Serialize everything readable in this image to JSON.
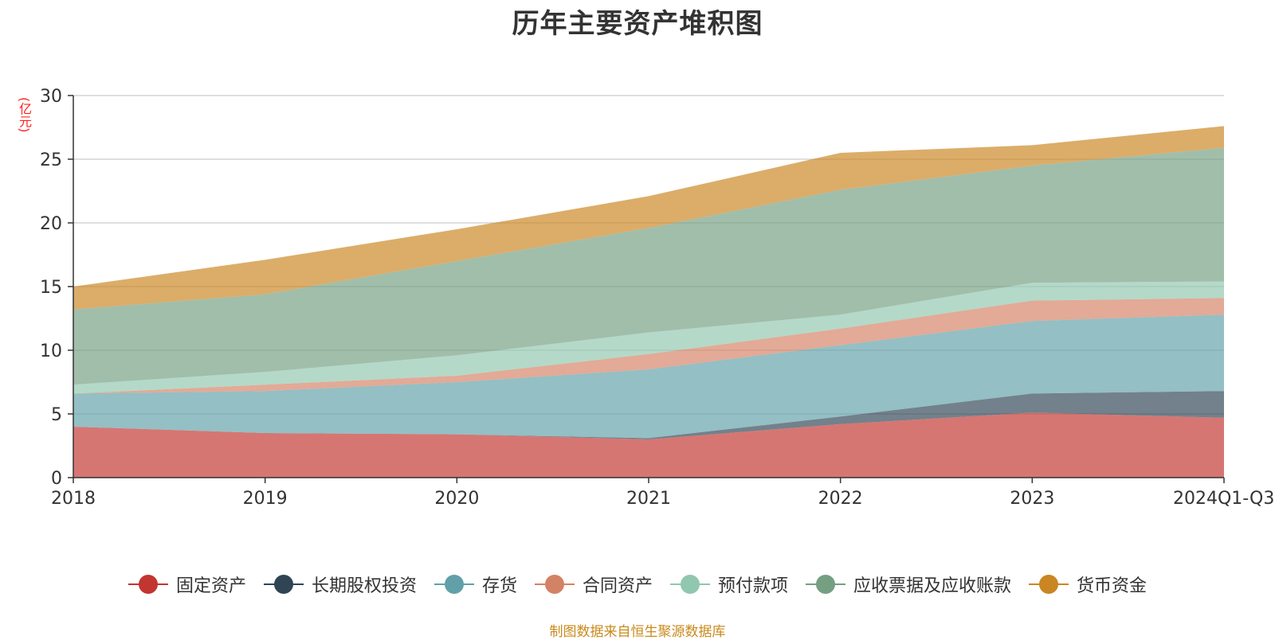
{
  "chart_data": {
    "type": "area",
    "stacked": true,
    "title": "历年主要资产堆积图",
    "unit_label": "(亿元)",
    "categories": [
      "2018",
      "2019",
      "2020",
      "2021",
      "2022",
      "2023",
      "2024Q1-Q3"
    ],
    "ylim": [
      0,
      30
    ],
    "yticks": [
      0,
      5,
      10,
      15,
      20,
      25,
      30
    ],
    "grid": true,
    "legend_position": "bottom",
    "series": [
      {
        "name": "固定资产",
        "color": "#c23531",
        "values": [
          4.0,
          3.5,
          3.4,
          3.0,
          4.2,
          5.1,
          4.7
        ]
      },
      {
        "name": "长期股权投资",
        "color": "#2f4554",
        "values": [
          0.0,
          0.0,
          0.0,
          0.1,
          0.6,
          1.5,
          2.1
        ]
      },
      {
        "name": "存货",
        "color": "#61a0a8",
        "values": [
          2.6,
          3.3,
          4.1,
          5.4,
          5.6,
          5.7,
          6.0
        ]
      },
      {
        "name": "合同资产",
        "color": "#d48265",
        "values": [
          0.0,
          0.5,
          0.5,
          1.2,
          1.3,
          1.6,
          1.3
        ]
      },
      {
        "name": "预付款项",
        "color": "#91c7ae",
        "values": [
          0.7,
          1.0,
          1.6,
          1.7,
          1.1,
          1.4,
          1.3
        ]
      },
      {
        "name": "应收票据及应收账款",
        "color": "#749f83",
        "values": [
          5.9,
          6.1,
          7.4,
          8.2,
          9.8,
          9.2,
          10.5
        ]
      },
      {
        "name": "货币资金",
        "color": "#ca8622",
        "values": [
          1.8,
          2.7,
          2.5,
          2.5,
          2.9,
          1.6,
          1.7
        ]
      }
    ]
  },
  "footer": {
    "source": "制图数据来自恒生聚源数据库"
  }
}
